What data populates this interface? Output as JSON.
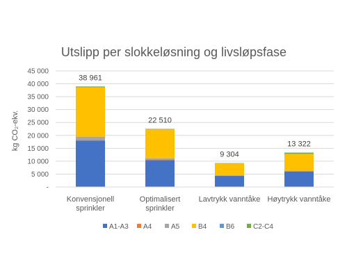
{
  "chart_data": {
    "type": "bar",
    "stacked": true,
    "title": "Utslipp per slokkeløsning og livsløpsfase",
    "ylabel": "kg CO₂-ekv.",
    "xlabel": "",
    "ylim": [
      0,
      45000
    ],
    "yticks": [
      0,
      5000,
      10000,
      15000,
      20000,
      25000,
      30000,
      35000,
      40000,
      45000
    ],
    "ytick_labels": [
      "-",
      "5 000",
      "10 000",
      "15 000",
      "20 000",
      "25 000",
      "30 000",
      "35 000",
      "40 000",
      "45 000"
    ],
    "categories": [
      [
        "Konvensjonell",
        "sprinkler"
      ],
      [
        "Optimalisert",
        "sprinkler"
      ],
      [
        "Lavtrykk vanntåke"
      ],
      [
        "Høytrykk vanntåke"
      ]
    ],
    "totals": [
      "38 961",
      "22 510",
      "9 304",
      "13 322"
    ],
    "grid": true,
    "legend_position": "bottom",
    "series": [
      {
        "name": "A1-A3",
        "color": "#4472C4",
        "values": [
          18000,
          10400,
          4300,
          6000
        ]
      },
      {
        "name": "A4",
        "color": "#ED7D31",
        "values": [
          200,
          100,
          50,
          60
        ]
      },
      {
        "name": "A5",
        "color": "#A5A5A5",
        "values": [
          1300,
          600,
          200,
          300
        ]
      },
      {
        "name": "B4",
        "color": "#FFC000",
        "values": [
          19111,
          11210,
          4654,
          6462
        ]
      },
      {
        "name": "B6",
        "color": "#5B9BD5",
        "values": [
          50,
          50,
          50,
          100
        ]
      },
      {
        "name": "C2-C4",
        "color": "#70AD47",
        "values": [
          300,
          150,
          50,
          400
        ]
      }
    ]
  }
}
